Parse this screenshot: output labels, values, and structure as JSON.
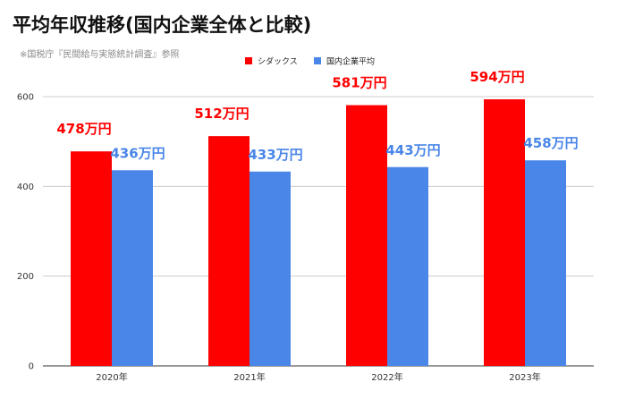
{
  "chart_data": {
    "type": "bar",
    "title": "平均年収推移(国内企業全体と比較)",
    "subtitle": "※国税庁『民間給与実態統計調査』参照",
    "categories": [
      "2020年",
      "2021年",
      "2022年",
      "2023年"
    ],
    "series": [
      {
        "name": "シダックス",
        "color": "#ff0000",
        "values": [
          478,
          512,
          581,
          594
        ],
        "labels": [
          "478万円",
          "512万円",
          "581万円",
          "594万円"
        ]
      },
      {
        "name": "国内企業平均",
        "color": "#4a86e8",
        "values": [
          436,
          433,
          443,
          458
        ],
        "labels": [
          "436万円",
          "433万円",
          "443万円",
          "458万円"
        ]
      }
    ],
    "ylim": [
      0,
      600
    ],
    "yticks": [
      0,
      200,
      400,
      600
    ],
    "grid": true,
    "legend_position": "top-center",
    "xlabel": "",
    "ylabel": ""
  }
}
